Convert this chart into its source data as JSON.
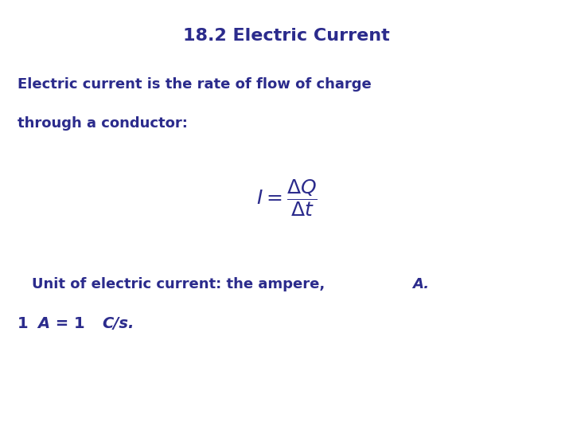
{
  "title": "18.2 Electric Current",
  "title_color": "#2B2B8C",
  "title_fontsize": 16,
  "body_color": "#2B2B8C",
  "background_color": "#ffffff",
  "line1": "Electric current is the rate of flow of charge",
  "line2": "through a conductor:",
  "line1_fontsize": 13,
  "formula_fontsize": 18,
  "unit_fontsize": 13,
  "one_amp_fontsize": 14
}
